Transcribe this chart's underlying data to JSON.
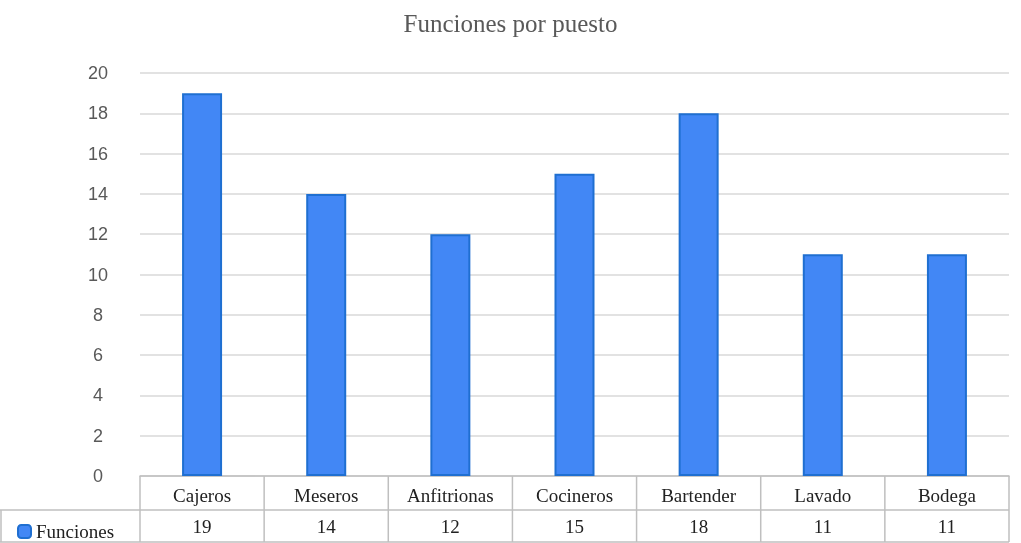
{
  "chart_data": {
    "type": "bar",
    "title": "Funciones por puesto",
    "categories": [
      "Cajeros",
      "Meseros",
      "Anfitrionas",
      "Cocineros",
      "Bartender",
      "Lavado",
      "Bodega"
    ],
    "series": [
      {
        "name": "Funciones",
        "color": "#4287f5",
        "values": [
          19,
          14,
          12,
          15,
          18,
          11,
          11
        ]
      }
    ],
    "ylim": [
      0,
      20
    ],
    "yticks": [
      0,
      2,
      4,
      6,
      8,
      10,
      12,
      14,
      16,
      18,
      20
    ],
    "grid": "y",
    "legend": "bottom",
    "data_labels": true
  }
}
